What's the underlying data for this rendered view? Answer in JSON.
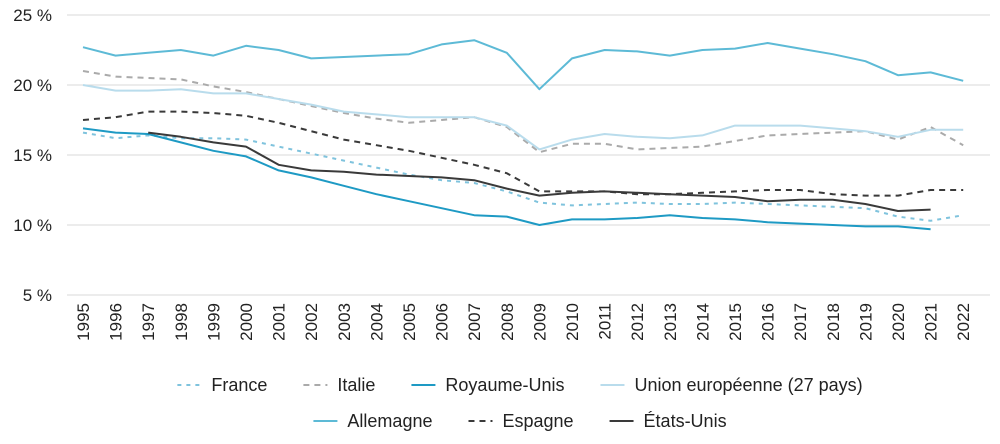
{
  "chart_data": {
    "type": "line",
    "title": "",
    "xlabel": "",
    "ylabel": "",
    "ylim": [
      5,
      25
    ],
    "y_ticks": [
      5,
      10,
      15,
      20,
      25
    ],
    "y_tick_labels": [
      "5 %",
      "10 %",
      "15 %",
      "20 %",
      "25 %"
    ],
    "grid": "horizontal",
    "legend_position": "bottom",
    "x": [
      "1995",
      "1996",
      "1997",
      "1998",
      "1999",
      "2000",
      "2001",
      "2002",
      "2003",
      "2004",
      "2005",
      "2006",
      "2007",
      "2008",
      "2009",
      "2010",
      "2011",
      "2012",
      "2013",
      "2014",
      "2015",
      "2016",
      "2017",
      "2018",
      "2019",
      "2020",
      "2021",
      "2022"
    ],
    "series": [
      {
        "name": "France",
        "color": "#7fc3dd",
        "dash": "dotted",
        "values": [
          16.6,
          16.2,
          16.4,
          16.2,
          16.2,
          16.1,
          15.6,
          15.1,
          14.6,
          14.1,
          13.6,
          13.2,
          13.0,
          12.4,
          11.6,
          11.4,
          11.5,
          11.6,
          11.5,
          11.5,
          11.6,
          11.5,
          11.4,
          11.3,
          11.2,
          10.6,
          10.3,
          10.7
        ]
      },
      {
        "name": "Italie",
        "color": "#aaaaaa",
        "dash": "dashed",
        "values": [
          21.0,
          20.6,
          20.5,
          20.4,
          19.9,
          19.5,
          19.0,
          18.5,
          18.0,
          17.6,
          17.3,
          17.5,
          17.7,
          17.0,
          15.2,
          15.8,
          15.8,
          15.4,
          15.5,
          15.6,
          16.0,
          16.4,
          16.5,
          16.6,
          16.7,
          16.1,
          17.0,
          15.7
        ]
      },
      {
        "name": "Royaume-Unis",
        "color": "#1e9ac4",
        "dash": "solid",
        "values": [
          16.9,
          16.6,
          16.5,
          15.9,
          15.3,
          14.9,
          13.9,
          13.4,
          12.8,
          12.2,
          11.7,
          11.2,
          10.7,
          10.6,
          10.0,
          10.4,
          10.4,
          10.5,
          10.7,
          10.5,
          10.4,
          10.2,
          10.1,
          10.0,
          9.9,
          9.9,
          9.7,
          null
        ]
      },
      {
        "name": "Union européenne (27 pays)",
        "color": "#b9dcec",
        "dash": "solid",
        "values": [
          20.0,
          19.6,
          19.6,
          19.7,
          19.4,
          19.4,
          19.0,
          18.6,
          18.1,
          17.9,
          17.7,
          17.7,
          17.7,
          17.1,
          15.4,
          16.1,
          16.5,
          16.3,
          16.2,
          16.4,
          17.1,
          17.1,
          17.1,
          16.9,
          16.7,
          16.3,
          16.8,
          16.8
        ]
      },
      {
        "name": "Allemagne",
        "color": "#5dbad6",
        "dash": "solid",
        "values": [
          22.7,
          22.1,
          22.3,
          22.5,
          22.1,
          22.8,
          22.5,
          21.9,
          22.0,
          22.1,
          22.2,
          22.9,
          23.2,
          22.3,
          19.7,
          21.9,
          22.5,
          22.4,
          22.1,
          22.5,
          22.6,
          23.0,
          22.6,
          22.2,
          21.7,
          20.7,
          20.9,
          20.3
        ]
      },
      {
        "name": "Espagne",
        "color": "#3a3a3a",
        "dash": "dashed",
        "values": [
          17.5,
          17.7,
          18.1,
          18.1,
          18.0,
          17.8,
          17.3,
          16.7,
          16.1,
          15.7,
          15.3,
          14.8,
          14.3,
          13.7,
          12.4,
          12.4,
          12.4,
          12.2,
          12.2,
          12.3,
          12.4,
          12.5,
          12.5,
          12.2,
          12.1,
          12.1,
          12.5,
          12.5
        ]
      },
      {
        "name": "États-Unis",
        "color": "#3a3a3a",
        "dash": "solid",
        "values": [
          null,
          null,
          16.6,
          16.3,
          15.9,
          15.6,
          14.3,
          13.9,
          13.8,
          13.6,
          13.5,
          13.4,
          13.2,
          12.6,
          12.1,
          12.3,
          12.4,
          12.3,
          12.2,
          12.1,
          12.0,
          11.7,
          11.8,
          11.8,
          11.5,
          11.0,
          11.1,
          null
        ]
      }
    ],
    "legend_rows": [
      [
        "France",
        "Italie",
        "Royaume-Unis",
        "Union européenne (27 pays)"
      ],
      [
        "Allemagne",
        "Espagne",
        "États-Unis"
      ]
    ]
  }
}
